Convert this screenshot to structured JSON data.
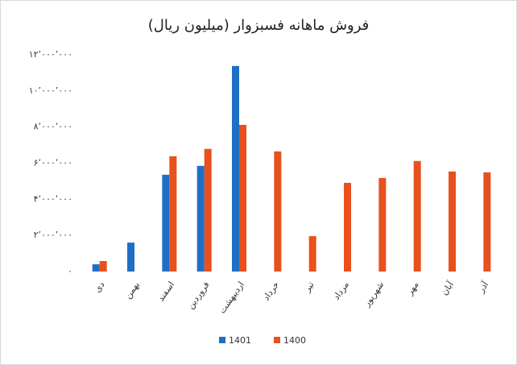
{
  "chart_data": {
    "type": "bar",
    "title": "فروش ماهانه فسبزوار (میلیون ریال)",
    "categories": [
      "دی",
      "بهمن",
      "اسفند",
      "فروردین",
      "اردیبهشت",
      "خرداد",
      "تیر",
      "مرداد",
      "شهریور",
      "مهر",
      "آبان",
      "آذر"
    ],
    "series": [
      {
        "name": "1401",
        "color": "#1f6fc5",
        "values": [
          400000,
          1600000,
          5360000,
          5850000,
          11380000,
          null,
          null,
          null,
          null,
          null,
          null,
          null
        ]
      },
      {
        "name": "1400",
        "color": "#e8501e",
        "values": [
          580000,
          null,
          6380000,
          6790000,
          8120000,
          6650000,
          1960000,
          4910000,
          5180000,
          6120000,
          5540000,
          5490000
        ]
      }
    ],
    "ylim": [
      0,
      12000000
    ],
    "yticks": [
      {
        "value": 0,
        "label": "۰"
      },
      {
        "value": 2000000,
        "label": "۲٬۰۰۰٬۰۰۰"
      },
      {
        "value": 4000000,
        "label": "۴٬۰۰۰٬۰۰۰"
      },
      {
        "value": 6000000,
        "label": "۶٬۰۰۰٬۰۰۰"
      },
      {
        "value": 8000000,
        "label": "۸٬۰۰۰٬۰۰۰"
      },
      {
        "value": 10000000,
        "label": "۱۰٬۰۰۰٬۰۰۰"
      },
      {
        "value": 12000000,
        "label": "۱۲٬۰۰۰٬۰۰۰"
      }
    ],
    "grid": false,
    "legend": "bottom"
  }
}
